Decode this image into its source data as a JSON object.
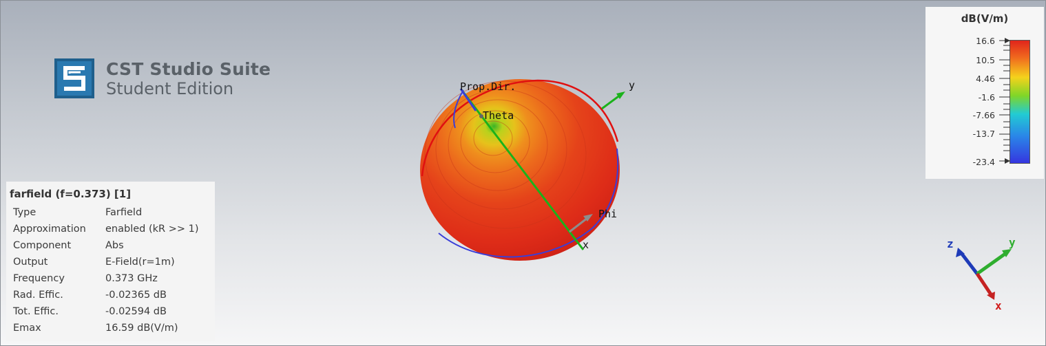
{
  "logo": {
    "title": "CST Studio Suite",
    "subtitle": "Student Edition"
  },
  "info": {
    "title": "farfield (f=0.373) [1]",
    "rows": [
      {
        "key": "Type",
        "value": "Farfield"
      },
      {
        "key": "Approximation",
        "value": "enabled (kR >> 1)"
      },
      {
        "key": "Component",
        "value": "Abs"
      },
      {
        "key": "Output",
        "value": "E-Field(r=1m)"
      },
      {
        "key": "Frequency",
        "value": "0.373 GHz"
      },
      {
        "key": "Rad. Effic.",
        "value": "-0.02365 dB"
      },
      {
        "key": "Tot. Effic.",
        "value": "-0.02594 dB"
      },
      {
        "key": "Emax",
        "value": "16.59 dB(V/m)"
      }
    ]
  },
  "legend": {
    "unit": "dB(V/m)",
    "ticks": [
      "16.6",
      "10.5",
      "4.46",
      "-1.6",
      "-7.66",
      "-13.7",
      "-23.4"
    ]
  },
  "plot_labels": {
    "prop_dir": "Prop.Dir.",
    "theta": "Theta",
    "phi": "Phi",
    "y": "y",
    "x": "x"
  },
  "triad_labels": {
    "z": "z",
    "y": "y",
    "x": "x"
  },
  "colors": {
    "sphere_main": "#e2261a",
    "axis_green": "#1bb21b",
    "axis_blue": "#2a3bd8",
    "axis_red": "#c61f1f"
  }
}
